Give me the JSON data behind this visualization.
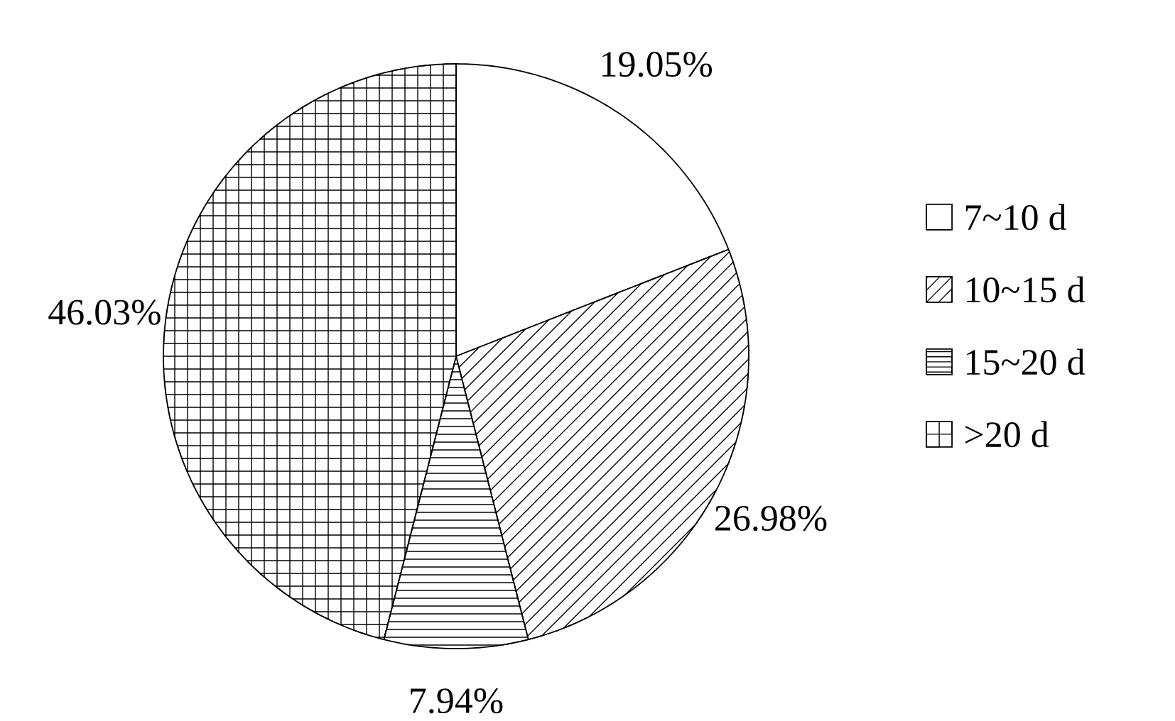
{
  "chart_data": {
    "type": "pie",
    "categories": [
      "7~10 d",
      "10~15 d",
      "15~20 d",
      ">20 d"
    ],
    "values": [
      19.05,
      26.98,
      7.94,
      46.03
    ],
    "value_labels": [
      "19.05%",
      "26.98%",
      "7.94%",
      "46.03%"
    ],
    "colors": [
      "#ffffff",
      "#ffffff",
      "#ffffff",
      "#ffffff"
    ],
    "legend": "right"
  }
}
